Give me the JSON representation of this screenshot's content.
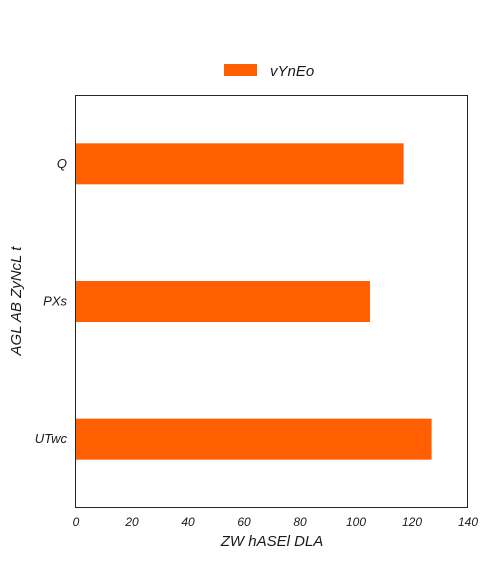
{
  "chart_data": {
    "type": "bar",
    "orientation": "horizontal",
    "categories": [
      "Q",
      "PXs",
      "UTwc"
    ],
    "series": [
      {
        "name": "vYnEo",
        "values": [
          117,
          105,
          127
        ],
        "color": "#ff5f00"
      }
    ],
    "xlabel": "ZW  hASEl DLA",
    "ylabel": "AGL AB ZyNcL t",
    "xlim": [
      0,
      140
    ],
    "xticks": [
      0,
      20,
      40,
      60,
      80,
      100,
      120,
      140
    ],
    "xtick_labels": [
      "0",
      "20",
      "40",
      "60",
      "80",
      "100",
      "120",
      "140"
    ],
    "grid": false,
    "legend_position": "top-center"
  }
}
